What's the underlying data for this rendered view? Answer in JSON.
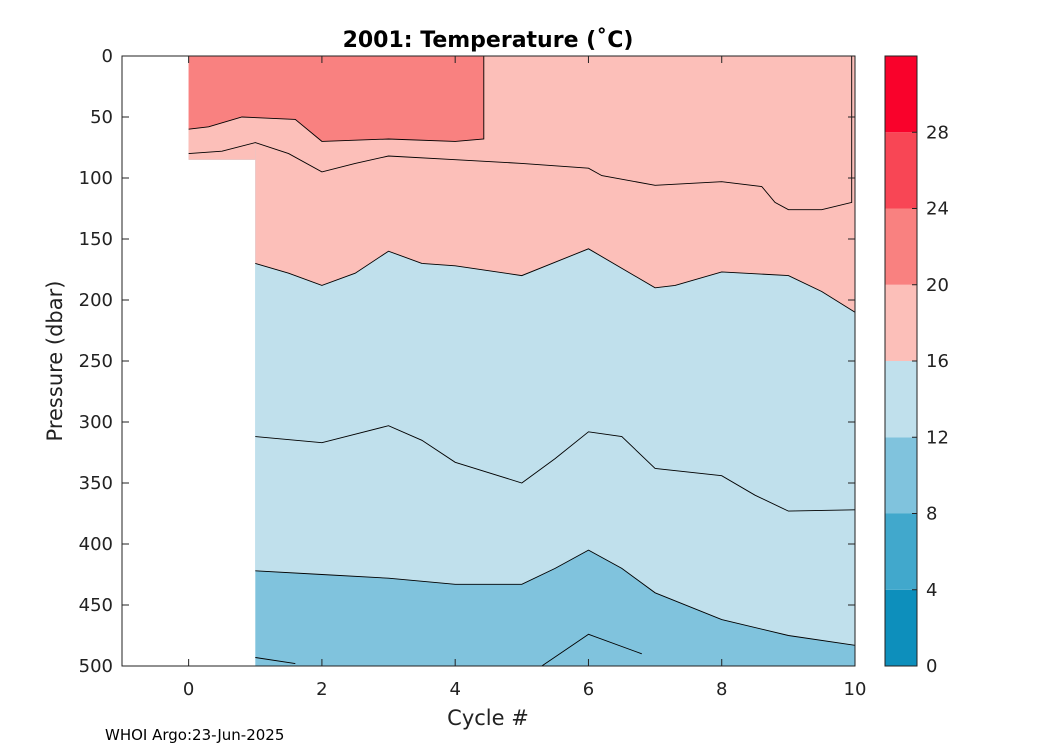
{
  "chart_data": {
    "type": "contourf",
    "title": "2001:  Temperature (˚C)",
    "xlabel": "Cycle #",
    "ylabel": "Pressure (dbar)",
    "xlim": [
      -1,
      10
    ],
    "ylim": [
      500,
      0
    ],
    "y_reversed": true,
    "x_ticks": [
      "0",
      "2",
      "4",
      "6",
      "8",
      "10"
    ],
    "y_ticks": [
      "0",
      "50",
      "100",
      "150",
      "200",
      "250",
      "300",
      "350",
      "400",
      "450",
      "500"
    ],
    "colorbar": {
      "levels": [
        0,
        4,
        8,
        12,
        16,
        20,
        24,
        28,
        32
      ],
      "tick_labels": [
        "0",
        "4",
        "8",
        "12",
        "16",
        "20",
        "24",
        "28"
      ],
      "colors": [
        "#0d8fbc",
        "#41a8cc",
        "#80c3dd",
        "#c0e0ec",
        "#fcbfb9",
        "#f98180",
        "#f84655",
        "#f9022b"
      ]
    },
    "fill_colors": {
      "8-12": "#80c3dd",
      "12-16": "#c0e0ec",
      "16-20": "#fcbfb9",
      "20-24": "#f98180"
    },
    "cycles_sampled": [
      0,
      1,
      2,
      3,
      4,
      5,
      6,
      7,
      8,
      9,
      10
    ],
    "contours": {
      "24": {
        "x": [
          0,
          0.3,
          0.8,
          1.6,
          2,
          3,
          4,
          4.43,
          4.43
        ],
        "y": [
          60,
          58,
          50,
          52,
          70,
          68,
          70,
          68,
          0
        ]
      },
      "20": {
        "x": [
          0,
          0.5,
          1,
          1.5,
          2,
          2.5,
          3,
          4,
          5,
          6,
          6.2,
          7,
          8,
          8.6,
          8.8,
          9,
          9.5,
          9.95,
          9.95
        ],
        "y": [
          80,
          78,
          71,
          80,
          95,
          88,
          82,
          85,
          88,
          92,
          98,
          106,
          103,
          107,
          120,
          126,
          126,
          120,
          0
        ]
      },
      "16": {
        "x": [
          1,
          1.5,
          2,
          2.5,
          3,
          3.5,
          4,
          5,
          6,
          7,
          7.3,
          8,
          9,
          9.5,
          10
        ],
        "y": [
          170,
          178,
          188,
          178,
          160,
          170,
          172,
          180,
          158,
          190,
          188,
          177,
          180,
          193,
          210
        ]
      },
      "12": {
        "x": [
          1,
          2,
          3,
          3.5,
          4,
          5,
          5.5,
          6,
          6.5,
          7,
          8,
          8.5,
          9,
          10
        ],
        "y": [
          312,
          317,
          303,
          315,
          333,
          350,
          330,
          308,
          312,
          338,
          344,
          360,
          373,
          372
        ]
      },
      "8": {
        "x": [
          1,
          2,
          3,
          4,
          5,
          5.5,
          6,
          6.5,
          7,
          8,
          9,
          10
        ],
        "y": [
          422,
          425,
          428,
          433,
          433,
          420,
          405,
          420,
          440,
          462,
          475,
          483
        ]
      },
      "4": {
        "x": [
          1,
          1.6
        ],
        "y": [
          493,
          498
        ]
      },
      "4b": {
        "x": [
          5.3,
          6,
          6.8
        ],
        "y": [
          500,
          474,
          490
        ]
      }
    },
    "missing_data": "cycle 0 below ~85 dbar; no data before cycle 0",
    "grid": false
  },
  "footer": {
    "credit": "WHOI Argo:23-Jun-2025"
  }
}
